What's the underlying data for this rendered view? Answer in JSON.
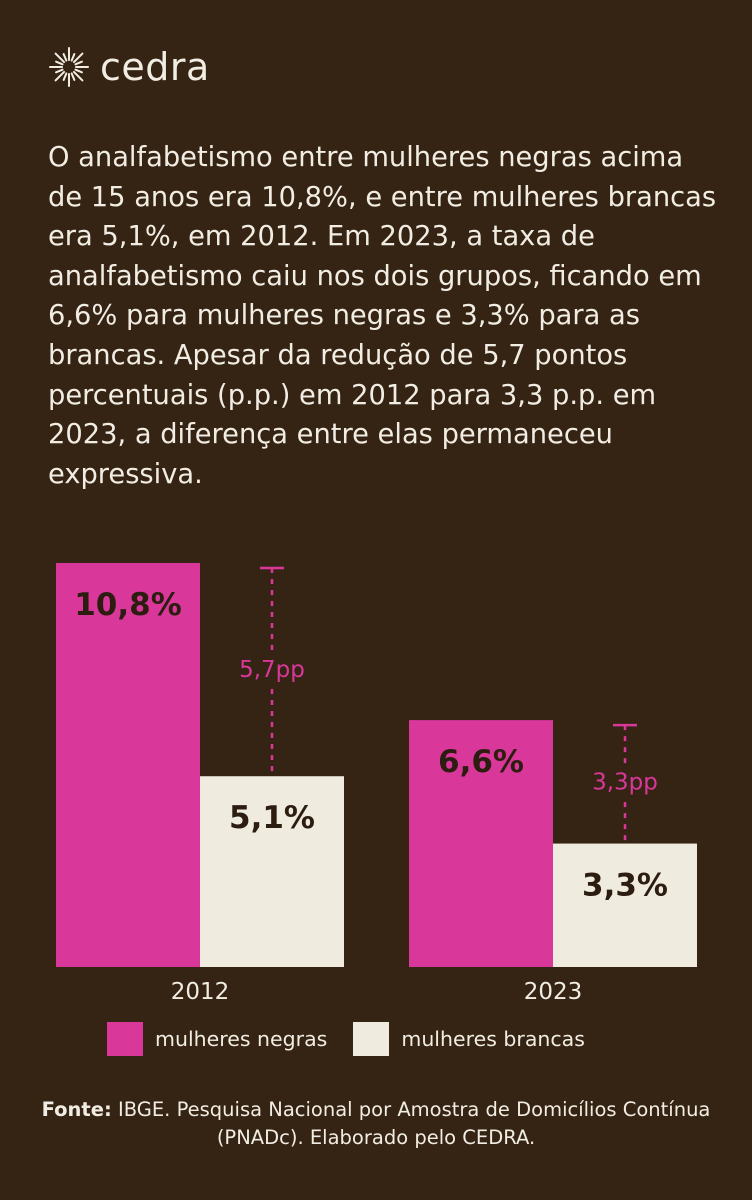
{
  "brand": {
    "name": "cedra",
    "mark_color": "#f1ede2"
  },
  "intro": "O analfabetismo entre mulheres negras acima de 15 anos era 10,8%, e entre mulheres brancas era 5,1%, em 2012. Em 2023, a taxa de analfabetismo caiu nos dois grupos, ficando em 6,6% para mulheres negras e 3,3% para as brancas. Apesar da redução de 5,7 pontos percentuais (p.p.) em 2012 para 3,3 p.p. em 2023, a diferença entre elas permaneceu expressiva.",
  "colors": {
    "background": "#352314",
    "negras": "#d9379a",
    "brancas": "#efebdf",
    "gap": "#d9379a",
    "text_light": "#f1ede2",
    "text_dark": "#2c1d10"
  },
  "chart_data": {
    "type": "bar",
    "categories": [
      "2012",
      "2023"
    ],
    "series": [
      {
        "name": "mulheres negras",
        "values": [
          10.8,
          6.6
        ],
        "labels": [
          "10,8%",
          "6,6%"
        ],
        "color": "#d9379a"
      },
      {
        "name": "mulheres brancas",
        "values": [
          5.1,
          3.3
        ],
        "labels": [
          "5,1%",
          "3,3%"
        ],
        "color": "#efebdf"
      }
    ],
    "gaps": [
      {
        "category": "2012",
        "value": 5.7,
        "label": "5,7pp"
      },
      {
        "category": "2023",
        "value": 3.3,
        "label": "3,3pp"
      }
    ],
    "ylim": [
      0,
      10.8
    ],
    "grid": false,
    "legend_position": "bottom"
  },
  "source": {
    "prefix": "Fonte:",
    "text": " IBGE. Pesquisa Nacional por Amostra de Domicílios Contínua (PNADc). Elaborado pelo CEDRA."
  }
}
